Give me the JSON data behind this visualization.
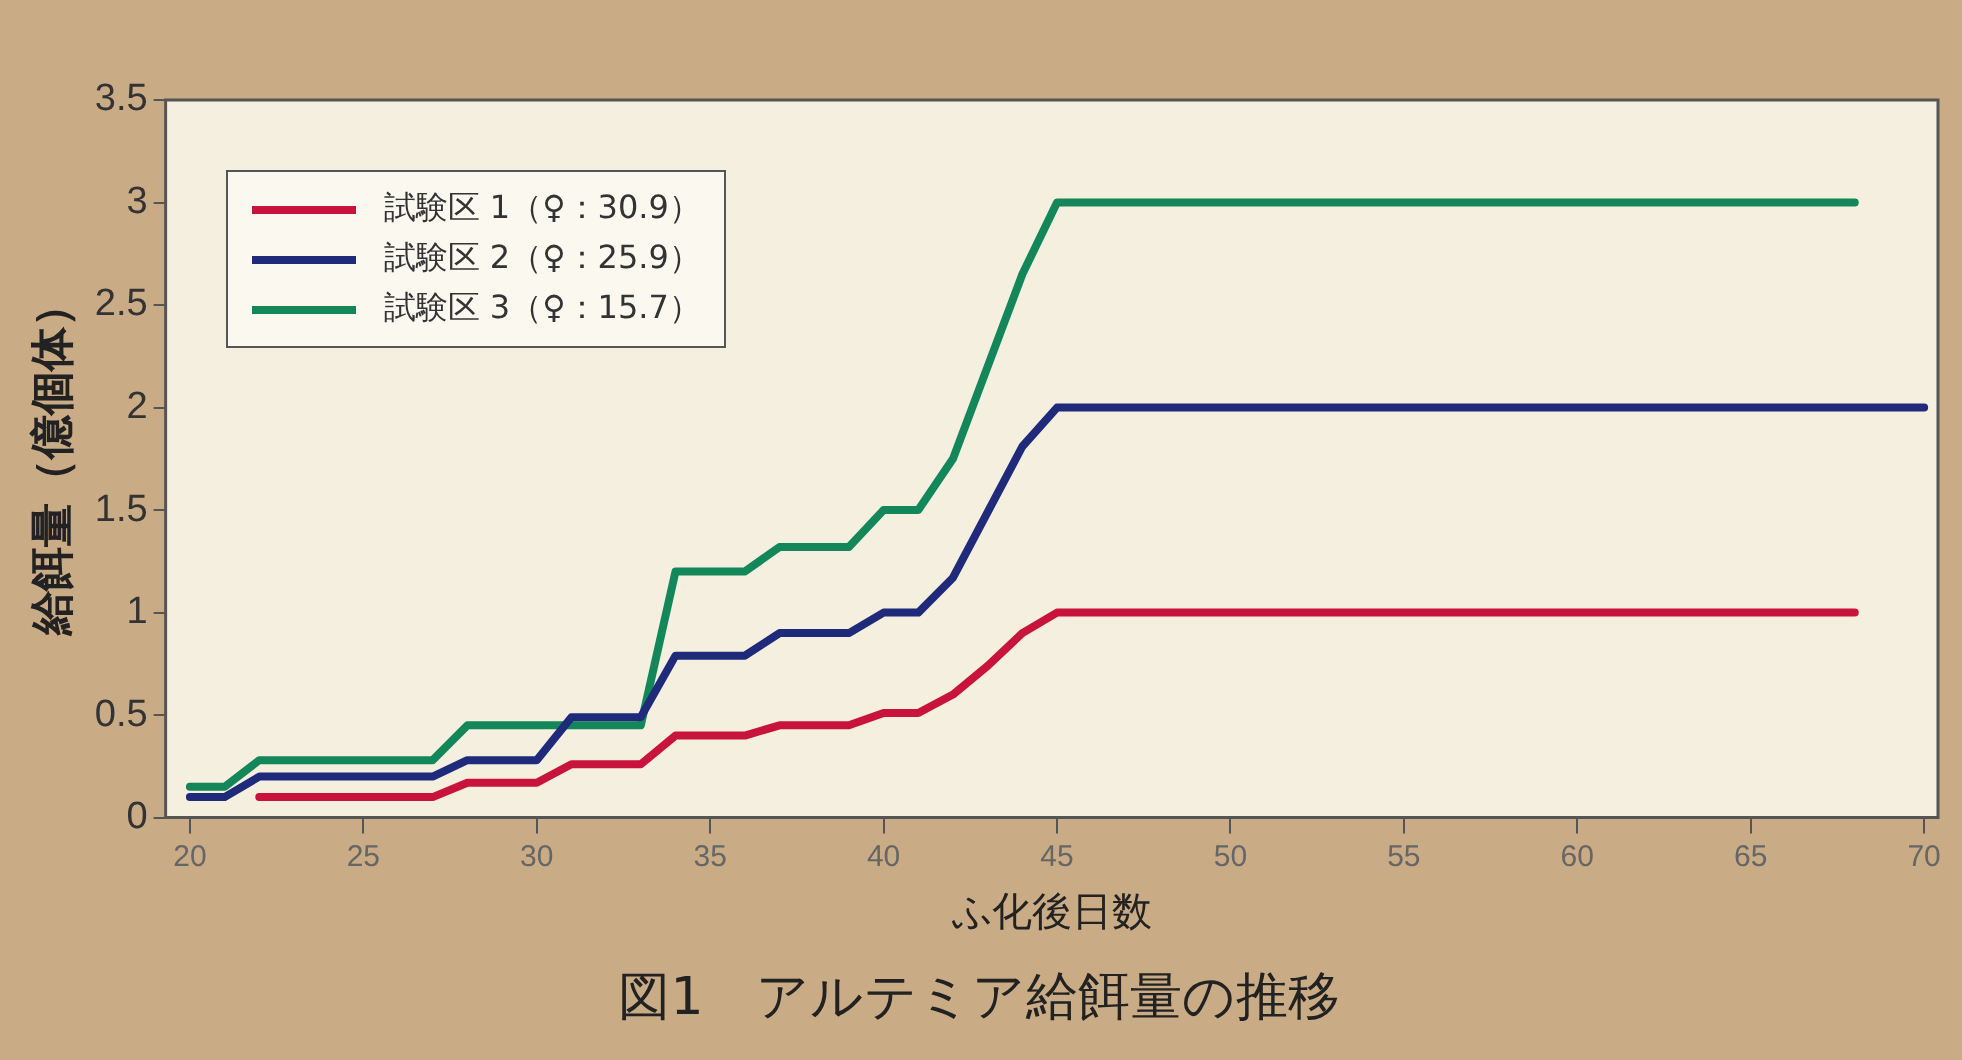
{
  "chart_data": {
    "type": "line",
    "title": "図1　アルテミア給餌量の推移",
    "xlabel": "ふ化後日数",
    "ylabel": "給餌量（億個体）",
    "xlim": [
      19.3,
      70.4
    ],
    "xticks": [
      20,
      25,
      30,
      35,
      40,
      45,
      50,
      55,
      60,
      65,
      70
    ],
    "ylim": [
      0,
      3.5
    ],
    "yticks": [
      0,
      0.5,
      1,
      1.5,
      2,
      2.5,
      3,
      3.5
    ],
    "grid": false,
    "legend": "top left",
    "marker": "none",
    "line_style": "solid",
    "series": [
      {
        "name": "試験区 1（♀：30.9）",
        "color": "#c8143c",
        "x": [
          22,
          27,
          28,
          30,
          31,
          33,
          34,
          36,
          37,
          39,
          40,
          41,
          42,
          43,
          44,
          45,
          68
        ],
        "values": [
          0.1,
          0.1,
          0.17,
          0.17,
          0.26,
          0.26,
          0.4,
          0.4,
          0.45,
          0.45,
          0.51,
          0.51,
          0.6,
          0.74,
          0.9,
          1,
          1
        ]
      },
      {
        "name": "試験区 2（♀：25.9）",
        "color": "#1f2a7a",
        "x": [
          20,
          21,
          22,
          27,
          28,
          30,
          31,
          33,
          34,
          36,
          37,
          39,
          40,
          41,
          42,
          43,
          44,
          45,
          70
        ],
        "values": [
          0.1,
          0.1,
          0.2,
          0.2,
          0.28,
          0.28,
          0.49,
          0.49,
          0.79,
          0.79,
          0.9,
          0.9,
          1,
          1,
          1.17,
          1.49,
          1.81,
          2,
          2
        ]
      },
      {
        "name": "試験区 3（♀：15.7）",
        "color": "#13875a",
        "x": [
          20,
          21,
          22,
          27,
          28,
          33,
          34,
          36,
          37,
          39,
          40,
          41,
          42,
          43,
          44,
          45,
          68
        ],
        "values": [
          0.15,
          0.15,
          0.28,
          0.28,
          0.45,
          0.45,
          1.2,
          1.2,
          1.32,
          1.32,
          1.5,
          1.5,
          1.75,
          2.2,
          2.65,
          3,
          3
        ]
      }
    ]
  }
}
